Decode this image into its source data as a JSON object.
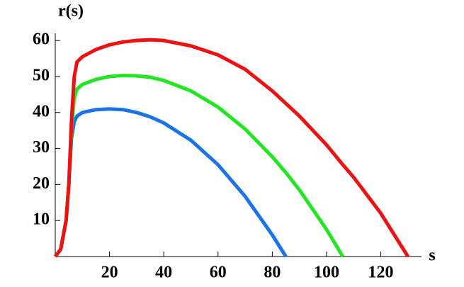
{
  "chart_data": {
    "type": "line",
    "x_label": "s",
    "y_label": "r(s)",
    "x": [
      0,
      2,
      4,
      5,
      6,
      7,
      8,
      10,
      15,
      20,
      25,
      30,
      35,
      40,
      50,
      60,
      70,
      80,
      85,
      90,
      100,
      106,
      110,
      120,
      130
    ],
    "series": [
      {
        "color": "#1a73e8",
        "values": [
          0,
          2,
          10,
          20,
          33,
          37.5,
          39,
          40,
          40.8,
          41,
          40.8,
          40,
          38.8,
          37.1,
          32.3,
          25.5,
          16.7,
          6,
          0,
          null,
          null,
          null,
          null,
          null,
          null
        ]
      },
      {
        "color": "#22e622",
        "values": [
          0,
          2,
          10,
          20,
          36,
          44,
          46.5,
          47.8,
          49.2,
          50,
          50.3,
          50.2,
          49.8,
          48.9,
          46,
          41.5,
          35.4,
          27.7,
          23.3,
          18.5,
          7.5,
          0,
          null,
          null,
          null
        ]
      },
      {
        "color": "#ee1111",
        "values": [
          0,
          2,
          10,
          20,
          38,
          50,
          54,
          55.5,
          57.5,
          58.8,
          59.6,
          60,
          60.2,
          60,
          58.5,
          56,
          52,
          46,
          42.5,
          39,
          31,
          25.5,
          22,
          12,
          0
        ]
      }
    ],
    "xlim": [
      0,
      135
    ],
    "ylim": [
      0,
      62
    ],
    "xticks": [
      20,
      40,
      60,
      80,
      100,
      120
    ],
    "yticks": [
      10,
      20,
      30,
      40,
      50,
      60
    ]
  }
}
